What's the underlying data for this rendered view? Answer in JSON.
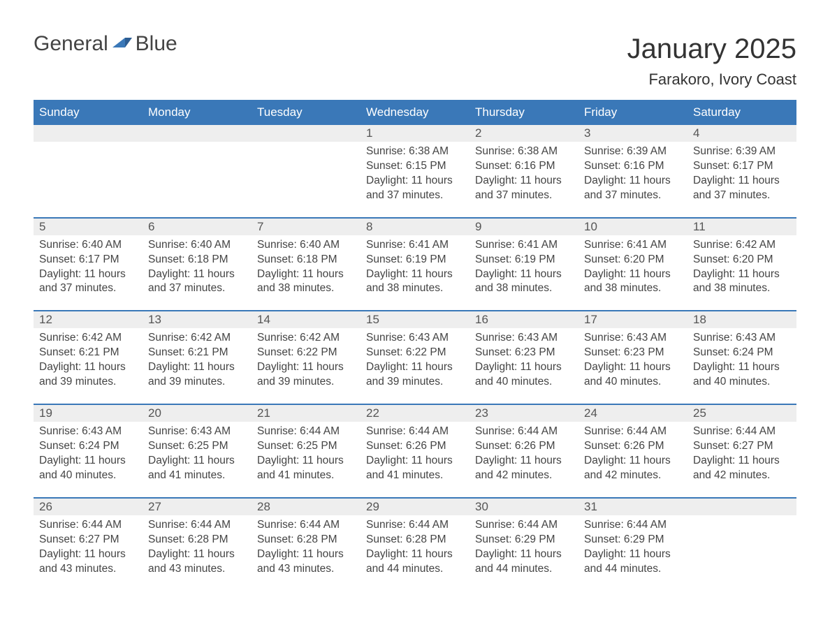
{
  "logo": {
    "general": "General",
    "blue": "Blue"
  },
  "title": "January 2025",
  "location": "Farakoro, Ivory Coast",
  "colors": {
    "header_bg": "#3a78b8",
    "header_text": "#ffffff",
    "daynum_bg": "#eeeeee",
    "row_border": "#3a78b8",
    "body_text": "#444444",
    "logo_blue": "#3a78b8"
  },
  "weekdays": [
    "Sunday",
    "Monday",
    "Tuesday",
    "Wednesday",
    "Thursday",
    "Friday",
    "Saturday"
  ],
  "weeks": [
    [
      null,
      null,
      null,
      {
        "day": "1",
        "sunrise": "6:38 AM",
        "sunset": "6:15 PM",
        "daylight": "11 hours and 37 minutes."
      },
      {
        "day": "2",
        "sunrise": "6:38 AM",
        "sunset": "6:16 PM",
        "daylight": "11 hours and 37 minutes."
      },
      {
        "day": "3",
        "sunrise": "6:39 AM",
        "sunset": "6:16 PM",
        "daylight": "11 hours and 37 minutes."
      },
      {
        "day": "4",
        "sunrise": "6:39 AM",
        "sunset": "6:17 PM",
        "daylight": "11 hours and 37 minutes."
      }
    ],
    [
      {
        "day": "5",
        "sunrise": "6:40 AM",
        "sunset": "6:17 PM",
        "daylight": "11 hours and 37 minutes."
      },
      {
        "day": "6",
        "sunrise": "6:40 AM",
        "sunset": "6:18 PM",
        "daylight": "11 hours and 37 minutes."
      },
      {
        "day": "7",
        "sunrise": "6:40 AM",
        "sunset": "6:18 PM",
        "daylight": "11 hours and 38 minutes."
      },
      {
        "day": "8",
        "sunrise": "6:41 AM",
        "sunset": "6:19 PM",
        "daylight": "11 hours and 38 minutes."
      },
      {
        "day": "9",
        "sunrise": "6:41 AM",
        "sunset": "6:19 PM",
        "daylight": "11 hours and 38 minutes."
      },
      {
        "day": "10",
        "sunrise": "6:41 AM",
        "sunset": "6:20 PM",
        "daylight": "11 hours and 38 minutes."
      },
      {
        "day": "11",
        "sunrise": "6:42 AM",
        "sunset": "6:20 PM",
        "daylight": "11 hours and 38 minutes."
      }
    ],
    [
      {
        "day": "12",
        "sunrise": "6:42 AM",
        "sunset": "6:21 PM",
        "daylight": "11 hours and 39 minutes."
      },
      {
        "day": "13",
        "sunrise": "6:42 AM",
        "sunset": "6:21 PM",
        "daylight": "11 hours and 39 minutes."
      },
      {
        "day": "14",
        "sunrise": "6:42 AM",
        "sunset": "6:22 PM",
        "daylight": "11 hours and 39 minutes."
      },
      {
        "day": "15",
        "sunrise": "6:43 AM",
        "sunset": "6:22 PM",
        "daylight": "11 hours and 39 minutes."
      },
      {
        "day": "16",
        "sunrise": "6:43 AM",
        "sunset": "6:23 PM",
        "daylight": "11 hours and 40 minutes."
      },
      {
        "day": "17",
        "sunrise": "6:43 AM",
        "sunset": "6:23 PM",
        "daylight": "11 hours and 40 minutes."
      },
      {
        "day": "18",
        "sunrise": "6:43 AM",
        "sunset": "6:24 PM",
        "daylight": "11 hours and 40 minutes."
      }
    ],
    [
      {
        "day": "19",
        "sunrise": "6:43 AM",
        "sunset": "6:24 PM",
        "daylight": "11 hours and 40 minutes."
      },
      {
        "day": "20",
        "sunrise": "6:43 AM",
        "sunset": "6:25 PM",
        "daylight": "11 hours and 41 minutes."
      },
      {
        "day": "21",
        "sunrise": "6:44 AM",
        "sunset": "6:25 PM",
        "daylight": "11 hours and 41 minutes."
      },
      {
        "day": "22",
        "sunrise": "6:44 AM",
        "sunset": "6:26 PM",
        "daylight": "11 hours and 41 minutes."
      },
      {
        "day": "23",
        "sunrise": "6:44 AM",
        "sunset": "6:26 PM",
        "daylight": "11 hours and 42 minutes."
      },
      {
        "day": "24",
        "sunrise": "6:44 AM",
        "sunset": "6:26 PM",
        "daylight": "11 hours and 42 minutes."
      },
      {
        "day": "25",
        "sunrise": "6:44 AM",
        "sunset": "6:27 PM",
        "daylight": "11 hours and 42 minutes."
      }
    ],
    [
      {
        "day": "26",
        "sunrise": "6:44 AM",
        "sunset": "6:27 PM",
        "daylight": "11 hours and 43 minutes."
      },
      {
        "day": "27",
        "sunrise": "6:44 AM",
        "sunset": "6:28 PM",
        "daylight": "11 hours and 43 minutes."
      },
      {
        "day": "28",
        "sunrise": "6:44 AM",
        "sunset": "6:28 PM",
        "daylight": "11 hours and 43 minutes."
      },
      {
        "day": "29",
        "sunrise": "6:44 AM",
        "sunset": "6:28 PM",
        "daylight": "11 hours and 44 minutes."
      },
      {
        "day": "30",
        "sunrise": "6:44 AM",
        "sunset": "6:29 PM",
        "daylight": "11 hours and 44 minutes."
      },
      {
        "day": "31",
        "sunrise": "6:44 AM",
        "sunset": "6:29 PM",
        "daylight": "11 hours and 44 minutes."
      },
      null
    ]
  ],
  "labels": {
    "sunrise": "Sunrise:",
    "sunset": "Sunset:",
    "daylight": "Daylight:"
  }
}
